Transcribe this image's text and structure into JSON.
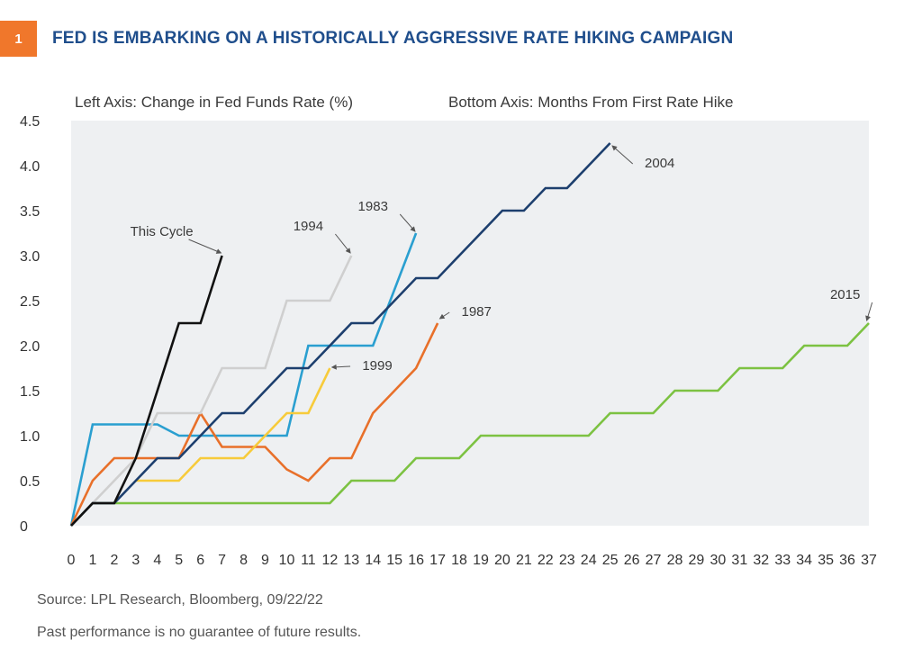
{
  "badge": "1",
  "title": "FED IS EMBARKING ON A HISTORICALLY AGGRESSIVE RATE HIKING CAMPAIGN",
  "footer": {
    "source": "Source: LPL Research, Bloomberg,  09/22/22",
    "disclaimer": "Past performance is no guarantee of future results."
  },
  "chart_data": {
    "type": "line",
    "left_axis_caption": "Left Axis: Change in Fed Funds Rate (%)",
    "bottom_axis_caption": "Bottom Axis: Months From First Rate Hike",
    "xlim": [
      0,
      37
    ],
    "ylim": [
      0,
      4.5
    ],
    "x_ticks": [
      0,
      1,
      2,
      3,
      4,
      5,
      6,
      7,
      8,
      9,
      10,
      11,
      12,
      13,
      14,
      15,
      16,
      17,
      18,
      19,
      20,
      21,
      22,
      23,
      24,
      25,
      26,
      27,
      28,
      29,
      30,
      31,
      32,
      33,
      34,
      35,
      36,
      37
    ],
    "y_ticks": [
      {
        "value": 0,
        "label": "0"
      },
      {
        "value": 0.5,
        "label": "0.5"
      },
      {
        "value": 1.0,
        "label": "1.0"
      },
      {
        "value": 1.5,
        "label": "1.5"
      },
      {
        "value": 2.0,
        "label": "2.0"
      },
      {
        "value": 2.5,
        "label": "2.5"
      },
      {
        "value": 3.0,
        "label": "3.0"
      },
      {
        "value": 3.5,
        "label": "3.5"
      },
      {
        "value": 4.0,
        "label": "4.0"
      },
      {
        "value": 4.5,
        "label": "4.5"
      }
    ],
    "plot_background": "#eef0f2",
    "series": [
      {
        "name": "2015",
        "color": "#7cc242",
        "x": [
          0,
          1,
          2,
          12,
          13,
          14,
          15,
          16,
          17,
          18,
          19,
          20,
          21,
          22,
          23,
          24,
          25,
          26,
          27,
          28,
          29,
          30,
          31,
          32,
          33,
          34,
          35,
          36,
          37
        ],
        "y": [
          0,
          0.25,
          0.25,
          0.25,
          0.5,
          0.5,
          0.5,
          0.75,
          0.75,
          0.75,
          1.0,
          1.0,
          1.0,
          1.0,
          1.0,
          1.0,
          1.25,
          1.25,
          1.25,
          1.5,
          1.5,
          1.5,
          1.75,
          1.75,
          1.75,
          2.0,
          2.0,
          2.0,
          2.25
        ],
        "label_x": 35.9,
        "label_y": 2.52,
        "arrow_to_x": 36.9,
        "arrow_to_y": 2.28
      },
      {
        "name": "1983",
        "color": "#2a9fd0",
        "x": [
          0,
          1,
          2,
          3,
          4,
          5,
          6,
          7,
          8,
          9,
          10,
          11,
          12,
          13,
          14,
          15,
          16
        ],
        "y": [
          0,
          1.125,
          1.125,
          1.125,
          1.125,
          1.0,
          1.0,
          1.0,
          1.0,
          1.0,
          1.0,
          2.0,
          2.0,
          2.0,
          2.0,
          2.625,
          3.25
        ],
        "label_x": 14.0,
        "label_y": 3.5,
        "arrow_to_x": 15.95,
        "arrow_to_y": 3.27
      },
      {
        "name": "1987",
        "color": "#e8702a",
        "x": [
          0,
          1,
          2,
          3,
          4,
          5,
          6,
          7,
          8,
          9,
          10,
          11,
          12,
          13,
          14,
          15,
          16,
          17
        ],
        "y": [
          0,
          0.5,
          0.75,
          0.75,
          0.75,
          0.75,
          1.25,
          0.875,
          0.875,
          0.875,
          0.625,
          0.5,
          0.75,
          0.75,
          1.25,
          1.5,
          1.75,
          2.25
        ],
        "label_x": 18.8,
        "label_y": 2.33,
        "arrow_to_x": 17.1,
        "arrow_to_y": 2.3
      },
      {
        "name": "1994",
        "color": "#cfcfcf",
        "x": [
          0,
          1,
          2,
          3,
          4,
          5,
          6,
          7,
          8,
          9,
          10,
          11,
          12,
          13
        ],
        "y": [
          0,
          0.25,
          0.5,
          0.75,
          1.25,
          1.25,
          1.25,
          1.75,
          1.75,
          1.75,
          2.5,
          2.5,
          2.5,
          3.0
        ],
        "label_x": 11.0,
        "label_y": 3.28,
        "arrow_to_x": 12.95,
        "arrow_to_y": 3.03
      },
      {
        "name": "1999",
        "color": "#f7cb3b",
        "x": [
          3,
          4,
          5,
          6,
          7,
          8,
          9,
          10,
          11,
          12
        ],
        "y": [
          0.5,
          0.5,
          0.5,
          0.75,
          0.75,
          0.75,
          1.0,
          1.25,
          1.25,
          1.75
        ],
        "label_x": 14.2,
        "label_y": 1.73,
        "arrow_to_x": 12.1,
        "arrow_to_y": 1.76
      },
      {
        "name": "2004",
        "color": "#1d3f6e",
        "x": [
          0,
          1,
          2,
          3,
          4,
          5,
          6,
          7,
          8,
          9,
          10,
          11,
          12,
          13,
          14,
          15,
          16,
          17,
          18,
          19,
          20,
          21,
          22,
          23,
          24,
          25
        ],
        "y": [
          0,
          0.25,
          0.25,
          0.5,
          0.75,
          0.75,
          1.0,
          1.25,
          1.25,
          1.5,
          1.75,
          1.75,
          2.0,
          2.25,
          2.25,
          2.5,
          2.75,
          2.75,
          3.0,
          3.25,
          3.5,
          3.5,
          3.75,
          3.75,
          4.0,
          4.25
        ],
        "label_x": 27.3,
        "label_y": 3.98,
        "arrow_to_x": 25.1,
        "arrow_to_y": 4.22
      },
      {
        "name": "This Cycle",
        "color": "#111111",
        "x": [
          0,
          1,
          2,
          3,
          4,
          5,
          6,
          7
        ],
        "y": [
          0,
          0.25,
          0.25,
          0.75,
          1.5,
          2.25,
          2.25,
          3.0
        ],
        "label_x": 4.2,
        "label_y": 3.22,
        "arrow_to_x": 6.95,
        "arrow_to_y": 3.03
      }
    ]
  }
}
